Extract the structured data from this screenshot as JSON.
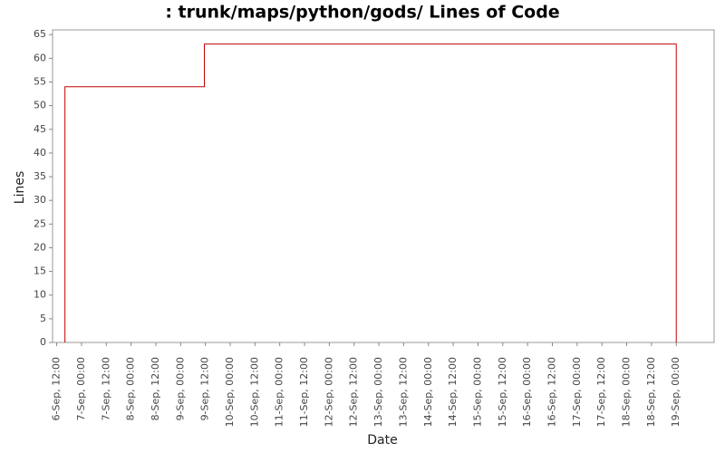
{
  "chart_data": {
    "type": "line",
    "title": ": trunk/maps/python/gods/ Lines of Code",
    "x_label": "Date",
    "y_label": "Lines",
    "x": [
      "6-Sep, 16:00",
      "6-Sep, 16:00",
      "9-Sep, 11:30",
      "9-Sep, 11:30",
      "19-Sep, 00:00",
      "19-Sep, 00:00"
    ],
    "series": [
      {
        "name": "Lines",
        "color": "#c00000",
        "values": [
          0,
          54,
          54,
          63,
          63,
          0
        ]
      }
    ],
    "xlim": [
      "6-Sep, 10:00",
      "19-Sep, 18:20"
    ],
    "xticks": [
      "6-Sep, 12:00",
      "7-Sep, 00:00",
      "7-Sep, 12:00",
      "8-Sep, 00:00",
      "8-Sep, 12:00",
      "9-Sep, 00:00",
      "9-Sep, 12:00",
      "10-Sep, 00:00",
      "10-Sep, 12:00",
      "11-Sep, 00:00",
      "11-Sep, 12:00",
      "12-Sep, 00:00",
      "12-Sep, 12:00",
      "13-Sep, 00:00",
      "13-Sep, 12:00",
      "14-Sep, 00:00",
      "14-Sep, 12:00",
      "15-Sep, 00:00",
      "15-Sep, 12:00",
      "16-Sep, 00:00",
      "16-Sep, 12:00",
      "17-Sep, 00:00",
      "17-Sep, 12:00",
      "18-Sep, 00:00",
      "18-Sep, 12:00",
      "19-Sep, 00:00"
    ],
    "ylim": [
      0,
      66
    ],
    "yticks": [
      0,
      5,
      10,
      15,
      20,
      25,
      30,
      35,
      40,
      45,
      50,
      55,
      60,
      65
    ],
    "grid": false
  }
}
